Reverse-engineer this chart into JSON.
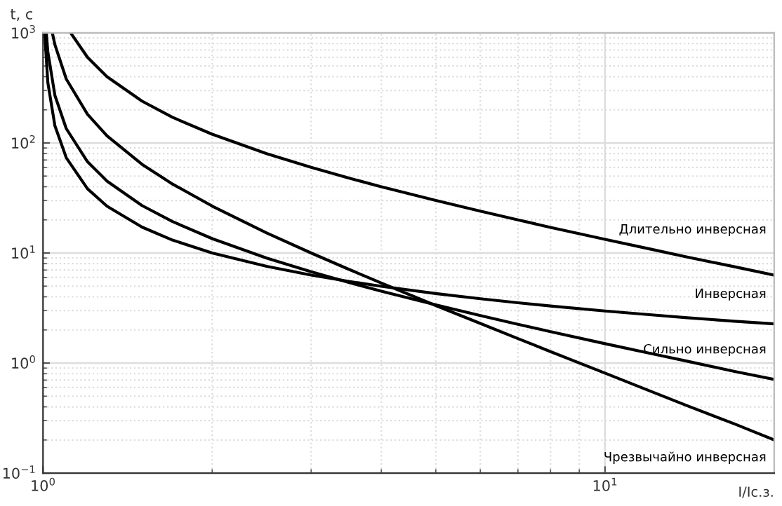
{
  "chart_data": {
    "type": "line",
    "xlabel": "I/Iс.з.",
    "ylabel": "t, с",
    "log": "xy",
    "grid": true,
    "marker": "none",
    "line_style": "solid",
    "xlim": [
      1,
      20
    ],
    "xticks": [
      {
        "value": 1,
        "label": "10$^{0}$"
      },
      {
        "value": 10,
        "label": "10$^{1}$"
      }
    ],
    "ylim": [
      0.1,
      1000
    ],
    "yticks": [
      {
        "value": 0.1,
        "label": "10$^{−1}$"
      },
      {
        "value": 1,
        "label": "10$^{0}$"
      },
      {
        "value": 10,
        "label": "10$^{1}$"
      },
      {
        "value": 100,
        "label": "10$^{2}$"
      },
      {
        "value": 1000,
        "label": "10$^{3}$"
      }
    ],
    "series": [
      {
        "name": "Длительно инверсная",
        "color": "#000000",
        "x": [
          1.12,
          1.2,
          1.3,
          1.5,
          1.7,
          2,
          2.5,
          3,
          3.5,
          4,
          5,
          6,
          7,
          8,
          10,
          12,
          14,
          17,
          20
        ],
        "values": [
          1000,
          600,
          400,
          240,
          171,
          120,
          80,
          60,
          48,
          40,
          30,
          24,
          20,
          17.1,
          13.3,
          10.9,
          9.2,
          7.5,
          6.3
        ]
      },
      {
        "name": "Инверсная",
        "color": "#000000",
        "x": [
          1.007,
          1.02,
          1.05,
          1.1,
          1.2,
          1.3,
          1.5,
          1.7,
          2,
          2.5,
          3,
          3.5,
          4,
          5,
          6,
          7,
          8,
          10,
          12,
          14,
          17,
          20
        ],
        "values": [
          1000,
          353,
          143,
          73.4,
          38.3,
          26.6,
          17.2,
          13.1,
          10.0,
          7.57,
          6.3,
          5.52,
          4.98,
          4.28,
          3.84,
          3.53,
          3.3,
          2.97,
          2.75,
          2.58,
          2.4,
          2.27
        ]
      },
      {
        "name": "Сильно инверсная",
        "color": "#000000",
        "x": [
          1.0135,
          1.02,
          1.05,
          1.1,
          1.2,
          1.3,
          1.5,
          1.7,
          2,
          2.5,
          3,
          3.5,
          4,
          5,
          6,
          7,
          8,
          10,
          12,
          14,
          17,
          20
        ],
        "values": [
          1000,
          675,
          270,
          135,
          67.5,
          45,
          27,
          19.3,
          13.5,
          9,
          6.75,
          5.4,
          4.5,
          3.38,
          2.7,
          2.25,
          1.93,
          1.5,
          1.23,
          1.04,
          0.84,
          0.71
        ]
      },
      {
        "name": "Чрезвычайно инверсная",
        "color": "#000000",
        "x": [
          1.039,
          1.05,
          1.1,
          1.2,
          1.3,
          1.5,
          1.7,
          2,
          2.5,
          3,
          3.5,
          4,
          5,
          6,
          7,
          8,
          10,
          12,
          14,
          17,
          20
        ],
        "values": [
          1000,
          780,
          381,
          182,
          116,
          64,
          42.3,
          26.7,
          15.2,
          10,
          7.11,
          5.33,
          3.33,
          2.29,
          1.67,
          1.27,
          0.81,
          0.56,
          0.41,
          0.28,
          0.2
        ]
      }
    ]
  }
}
